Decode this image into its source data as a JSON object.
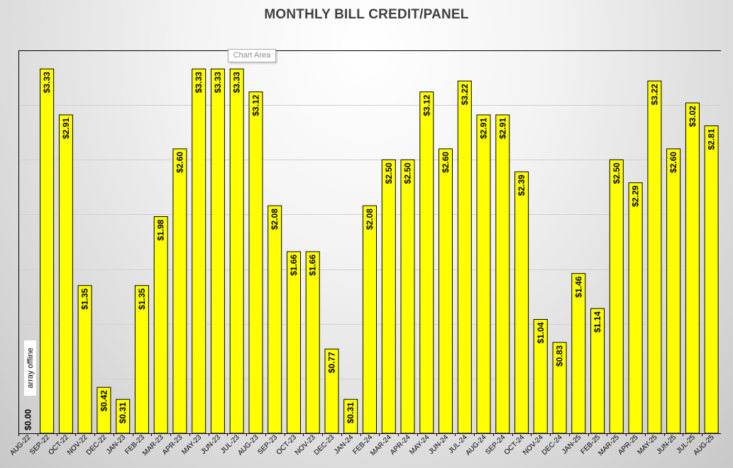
{
  "chart_data": {
    "type": "bar",
    "title": "MONTHLY BILL CREDIT/PANEL",
    "categories": [
      "AUG-22",
      "SEP-22",
      "OCT-22",
      "NOV-22",
      "DEC-22",
      "JAN-23",
      "FEB-23",
      "MAR-23",
      "APR-23",
      "MAY-23",
      "JUN-23",
      "JUL-23",
      "AUG-23",
      "SEP-23",
      "OCT-23",
      "NOV-23",
      "DEC-23",
      "JAN-24",
      "FEB-24",
      "MAR-24",
      "APR-24",
      "MAY-24",
      "JUN-24",
      "JUL-24",
      "AUG-24",
      "SEP-24",
      "OCT-24",
      "NOV-24",
      "DEC-24",
      "JAN-25",
      "FEB-25",
      "MAR-25",
      "APR-25",
      "MAY-25",
      "JUN-25",
      "JUL-25",
      "AUG-25"
    ],
    "values": [
      0.0,
      3.33,
      2.91,
      1.35,
      0.42,
      0.31,
      1.35,
      1.98,
      2.6,
      3.33,
      3.33,
      3.33,
      3.12,
      2.08,
      1.66,
      1.66,
      0.77,
      0.31,
      2.08,
      2.5,
      2.5,
      3.12,
      2.6,
      3.22,
      2.91,
      2.91,
      2.39,
      1.04,
      0.83,
      1.46,
      1.14,
      2.5,
      2.29,
      3.22,
      2.6,
      3.02,
      2.81
    ],
    "labels": [
      "$0.00",
      "$3.33",
      "$2.91",
      "$1.35",
      "$0.42",
      "$0.31",
      "$1.35",
      "$1.98",
      "$2.60",
      "$3.33",
      "$3.33",
      "$3.33",
      "$3.12",
      "$2.08",
      "$1.66",
      "$1.66",
      "$0.77",
      "$0.31",
      "$2.08",
      "$2.50",
      "$2.50",
      "$3.12",
      "$2.60",
      "$3.22",
      "$2.91",
      "$2.91",
      "$2.39",
      "$1.04",
      "$0.83",
      "$1.46",
      "$1.14",
      "$2.50",
      "$2.29",
      "$3.22",
      "$2.60",
      "$3.02",
      "$2.81"
    ],
    "ylim": [
      0,
      3.5
    ],
    "gridline_step": 0.5,
    "grid": true,
    "bar_color": "#ffff00",
    "bar_border_color": "#000000",
    "annotation": "array offline",
    "tooltip": "Chart Area"
  }
}
